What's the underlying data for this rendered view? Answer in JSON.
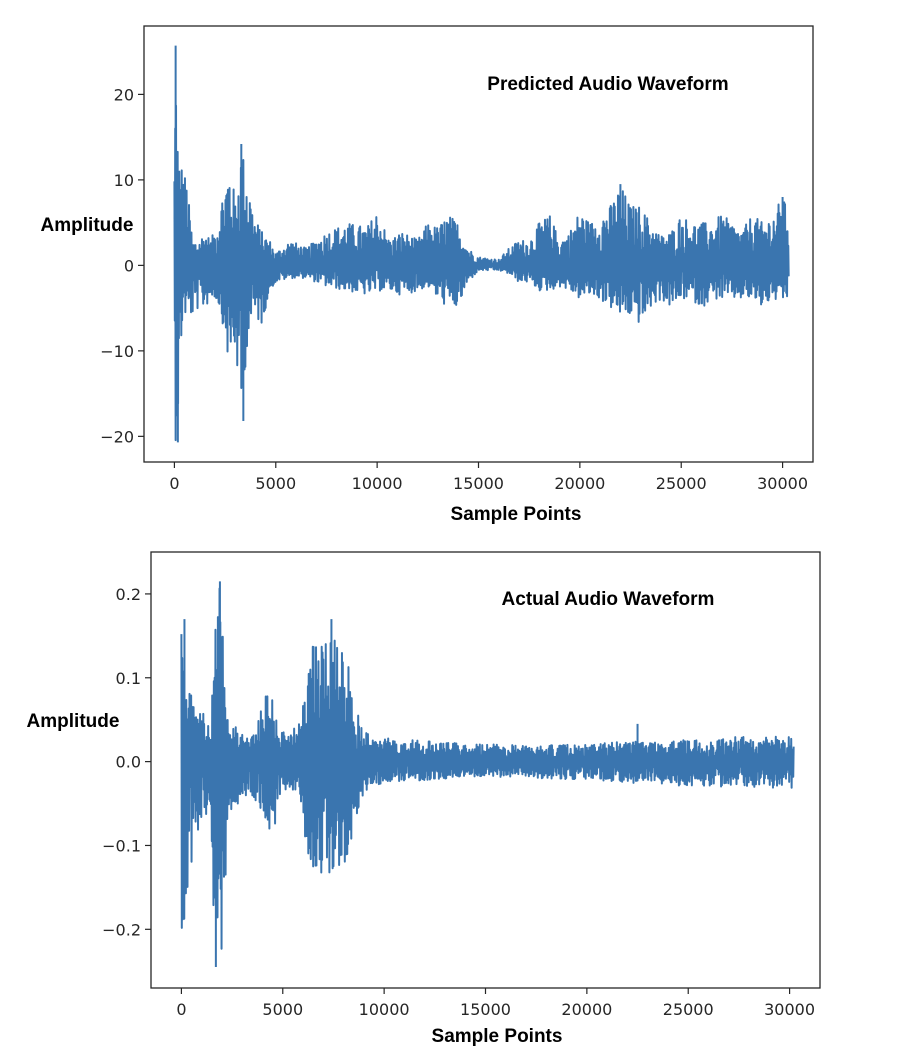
{
  "chart_data": [
    {
      "type": "line",
      "title": "Predicted Audio Waveform",
      "xlabel": "Sample Points",
      "ylabel": "Amplitude",
      "xlim": [
        -1500,
        31500
      ],
      "ylim": [
        -23,
        28
      ],
      "xticks": [
        0,
        5000,
        10000,
        15000,
        20000,
        25000,
        30000
      ],
      "yticks": [
        20,
        10,
        0,
        -10,
        -20
      ],
      "ytick_labels": [
        "20",
        "10",
        "0",
        "−10",
        "−20"
      ],
      "line_color": "#3a75af",
      "grid": false,
      "n_points": 30000,
      "envelope": [
        [
          0,
          13,
          -10
        ],
        [
          60,
          26,
          -20.5
        ],
        [
          200,
          13,
          -18
        ],
        [
          400,
          12,
          -6
        ],
        [
          600,
          10,
          -6
        ],
        [
          900,
          3,
          -6
        ],
        [
          1200,
          3,
          -5
        ],
        [
          1500,
          4,
          -5
        ],
        [
          1800,
          3,
          -4
        ],
        [
          2100,
          5,
          -4
        ],
        [
          2400,
          9,
          -7
        ],
        [
          2700,
          12,
          -12
        ],
        [
          3000,
          8,
          -10
        ],
        [
          3300,
          14,
          -18
        ],
        [
          3600,
          11,
          -9
        ],
        [
          3900,
          6,
          -6
        ],
        [
          4300,
          4,
          -7
        ],
        [
          4700,
          3,
          -3
        ],
        [
          5000,
          1.5,
          -2
        ],
        [
          5700,
          3,
          -1.5
        ],
        [
          6500,
          2,
          -1.5
        ],
        [
          7500,
          4,
          -2.5
        ],
        [
          8500,
          5,
          -3
        ],
        [
          9500,
          4.5,
          -3.5
        ],
        [
          10000,
          6.5,
          -3
        ],
        [
          10600,
          3,
          -3
        ],
        [
          11200,
          4,
          -3.5
        ],
        [
          12000,
          3,
          -3
        ],
        [
          12500,
          5,
          -2.5
        ],
        [
          13000,
          4.5,
          -4
        ],
        [
          13500,
          6,
          -5
        ],
        [
          14000,
          5,
          -5
        ],
        [
          14500,
          2,
          -2
        ],
        [
          15000,
          1,
          -0.6
        ],
        [
          16000,
          0.7,
          -0.6
        ],
        [
          16500,
          2,
          -1
        ],
        [
          17000,
          3,
          -2
        ],
        [
          17500,
          3,
          -2
        ],
        [
          18000,
          5,
          -3
        ],
        [
          18500,
          6,
          -3
        ],
        [
          19000,
          3,
          -2.5
        ],
        [
          19500,
          4,
          -3
        ],
        [
          20000,
          6.5,
          -4
        ],
        [
          20500,
          5,
          -3.5
        ],
        [
          21000,
          6,
          -4
        ],
        [
          21500,
          7,
          -5
        ],
        [
          22000,
          9.5,
          -6
        ],
        [
          22500,
          7,
          -6
        ],
        [
          23000,
          7,
          -7
        ],
        [
          23500,
          5,
          -5
        ],
        [
          24000,
          3.5,
          -4
        ],
        [
          24500,
          4,
          -5
        ],
        [
          25000,
          6,
          -4
        ],
        [
          25500,
          5,
          -4
        ],
        [
          26000,
          5,
          -5
        ],
        [
          26500,
          5,
          -4
        ],
        [
          27000,
          6,
          -4
        ],
        [
          27500,
          5,
          -4
        ],
        [
          28000,
          4,
          -4
        ],
        [
          28500,
          6,
          -4
        ],
        [
          29000,
          5,
          -5
        ],
        [
          29500,
          6,
          -4
        ],
        [
          30000,
          8,
          -4.5
        ],
        [
          30300,
          6.5,
          -4
        ]
      ],
      "spikes": [
        [
          60,
          25.7
        ],
        [
          170,
          -20.7
        ],
        [
          3300,
          14.2
        ],
        [
          3400,
          -18.2
        ],
        [
          22000,
          9.5
        ],
        [
          30000,
          8
        ]
      ]
    },
    {
      "type": "line",
      "title": "Actual Audio Waveform",
      "xlabel": "Sample Points",
      "ylabel": "Amplitude",
      "xlim": [
        -1500,
        31500
      ],
      "ylim": [
        -0.27,
        0.25
      ],
      "xticks": [
        0,
        5000,
        10000,
        15000,
        20000,
        25000,
        30000
      ],
      "yticks": [
        0.2,
        0.1,
        0.0,
        -0.1,
        -0.2
      ],
      "ytick_labels": [
        "0.2",
        "0.1",
        "0.0",
        "−0.1",
        "−0.2"
      ],
      "line_color": "#3a75af",
      "grid": false,
      "n_points": 30200,
      "envelope": [
        [
          0,
          0.16,
          -0.23
        ],
        [
          150,
          0.17,
          -0.23
        ],
        [
          350,
          0.09,
          -0.18
        ],
        [
          600,
          0.07,
          -0.09
        ],
        [
          1000,
          0.06,
          -0.08
        ],
        [
          1400,
          0.05,
          -0.07
        ],
        [
          1700,
          0.19,
          -0.245
        ],
        [
          1900,
          0.21,
          -0.245
        ],
        [
          2100,
          0.15,
          -0.2
        ],
        [
          2300,
          0.06,
          -0.06
        ],
        [
          2800,
          0.04,
          -0.05
        ],
        [
          3300,
          0.03,
          -0.04
        ],
        [
          3700,
          0.04,
          -0.05
        ],
        [
          4000,
          0.07,
          -0.06
        ],
        [
          4300,
          0.1,
          -0.08
        ],
        [
          4600,
          0.08,
          -0.09
        ],
        [
          4800,
          0.04,
          -0.04
        ],
        [
          5300,
          0.03,
          -0.03
        ],
        [
          5800,
          0.05,
          -0.04
        ],
        [
          6200,
          0.12,
          -0.11
        ],
        [
          6800,
          0.16,
          -0.14
        ],
        [
          7500,
          0.17,
          -0.13
        ],
        [
          8000,
          0.15,
          -0.13
        ],
        [
          8400,
          0.09,
          -0.09
        ],
        [
          8800,
          0.05,
          -0.05
        ],
        [
          9400,
          0.03,
          -0.03
        ],
        [
          10000,
          0.028,
          -0.025
        ],
        [
          12000,
          0.025,
          -0.022
        ],
        [
          14000,
          0.022,
          -0.02
        ],
        [
          16000,
          0.02,
          -0.018
        ],
        [
          18000,
          0.02,
          -0.02
        ],
        [
          20000,
          0.02,
          -0.022
        ],
        [
          22000,
          0.025,
          -0.025
        ],
        [
          24000,
          0.025,
          -0.028
        ],
        [
          26000,
          0.028,
          -0.03
        ],
        [
          28000,
          0.03,
          -0.03
        ],
        [
          30200,
          0.03,
          -0.032
        ]
      ],
      "spikes": [
        [
          150,
          0.17
        ],
        [
          1900,
          0.215
        ],
        [
          1700,
          -0.245
        ],
        [
          7400,
          0.17
        ],
        [
          22500,
          0.045
        ]
      ]
    }
  ]
}
